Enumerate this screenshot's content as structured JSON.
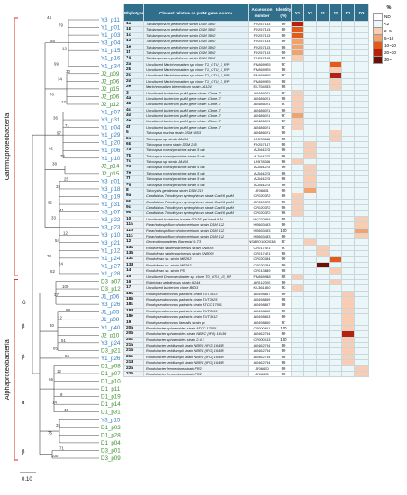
{
  "headers": {
    "phylotype": "Phylotype",
    "relative": "Closest relative as pufM gene source",
    "accession": "Accession number",
    "identity": "Identity (%)",
    "samples": [
      "Y1",
      "Y3",
      "J1",
      "J2",
      "D1",
      "D3"
    ]
  },
  "legend": {
    "title": "%",
    "items": [
      "ND",
      "<2",
      "2~5",
      "5~10",
      "10~20",
      "20~30",
      "30~"
    ]
  },
  "colors": {
    "header_bg": "#2f6f8c",
    "label_blue": "#2c7fc0",
    "label_green": "#3a8f2e",
    "clade_red": "#d9302a"
  },
  "classes": {
    "gamma": "Gammaproteobacteria",
    "alpha": "Alphaproteobacteria",
    "sub_g": "G",
    "sub_b1": "β",
    "sub_b2": "β",
    "sub_a": "α",
    "sub_b3": "β"
  },
  "scale": "0.10",
  "leaves": [
    {
      "t": "Y3_p11",
      "c": "b"
    },
    {
      "t": "Y1_p01",
      "c": "b"
    },
    {
      "t": "Y1_p03",
      "c": "b"
    },
    {
      "t": "Y3_p04",
      "c": "b"
    },
    {
      "t": "Y1_p15",
      "c": "b"
    },
    {
      "t": "Y1_p16",
      "c": "b"
    },
    {
      "t": "Y1_p34",
      "c": "b"
    },
    {
      "t": "J2_p09",
      "c": "g"
    },
    {
      "t": "J2_p06",
      "c": "g"
    },
    {
      "t": "J2_p15",
      "c": "g"
    },
    {
      "t": "J2_p06",
      "c": "g"
    },
    {
      "t": "J2_p12",
      "c": "g"
    },
    {
      "t": "Y1_p07",
      "c": "b"
    },
    {
      "t": "Y3_p31",
      "c": "b"
    },
    {
      "t": "Y1_p04",
      "c": "b"
    },
    {
      "t": "Y1_p29",
      "c": "b"
    },
    {
      "t": "Y1_p20",
      "c": "b"
    },
    {
      "t": "Y1_p06",
      "c": "b"
    },
    {
      "t": "Y1_p10",
      "c": "b"
    },
    {
      "t": "J2_p14",
      "c": "g"
    },
    {
      "t": "J2_p15",
      "c": "g"
    },
    {
      "t": "Y3_p01",
      "c": "b"
    },
    {
      "t": "Y3_p18",
      "c": "b"
    },
    {
      "t": "Y3_p19",
      "c": "b"
    },
    {
      "t": "Y1_p31",
      "c": "b"
    },
    {
      "t": "Y3_p07",
      "c": "b"
    },
    {
      "t": "Y3_p22",
      "c": "b"
    },
    {
      "t": "Y3_p23",
      "c": "b"
    },
    {
      "t": "Y3_p10",
      "c": "b"
    },
    {
      "t": "Y3_p21",
      "c": "b"
    },
    {
      "t": "Y1_p12",
      "c": "b"
    },
    {
      "t": "Y1_p24",
      "c": "b"
    },
    {
      "t": "Y1_p27",
      "c": "b"
    },
    {
      "t": "Y1_p28",
      "c": "b"
    },
    {
      "t": "D3_p07",
      "c": "g"
    },
    {
      "t": "D3_p12",
      "c": "g"
    },
    {
      "t": "J1_p06",
      "c": "b"
    },
    {
      "t": "Y3_p26",
      "c": "b"
    },
    {
      "t": "J1_p05",
      "c": "b"
    },
    {
      "t": "J1_p09",
      "c": "b"
    },
    {
      "t": "Y1_p40",
      "c": "b"
    },
    {
      "t": "J2_p10",
      "c": "g"
    },
    {
      "t": "Y3_p24",
      "c": "b"
    },
    {
      "t": "D3_p21",
      "c": "g"
    },
    {
      "t": "Y1_p26",
      "c": "b"
    },
    {
      "t": "D1_p08",
      "c": "g"
    },
    {
      "t": "D1_p07",
      "c": "g"
    },
    {
      "t": "D1_p10",
      "c": "g"
    },
    {
      "t": "D1_p11",
      "c": "g"
    },
    {
      "t": "D1_p19",
      "c": "g"
    },
    {
      "t": "D1_p14",
      "c": "g"
    },
    {
      "t": "D1_p31",
      "c": "g"
    },
    {
      "t": "Y3_p15",
      "c": "b"
    },
    {
      "t": "D1_p02",
      "c": "g"
    },
    {
      "t": "D1_p28",
      "c": "g"
    },
    {
      "t": "D1_p04",
      "c": "g"
    },
    {
      "t": "D3_p01",
      "c": "g"
    },
    {
      "t": "D3_p09",
      "c": "g"
    }
  ],
  "bootstrap": [
    "44",
    "79",
    "55",
    "12",
    "99",
    "30",
    "34",
    "70",
    "17",
    "36",
    "71",
    "97",
    "62",
    "75",
    "38",
    "25",
    "33",
    "62",
    "41",
    "33",
    "12",
    "54",
    "70",
    "24",
    "62",
    "100",
    "37",
    "99",
    "12",
    "30",
    "51",
    "85",
    "55",
    "12",
    "66",
    "8",
    "14",
    "40",
    "33",
    "75",
    "71",
    "100"
  ],
  "rows": [
    {
      "p": "1a",
      "n": "Thiolamprovum pedioforme strain DSM 3802",
      "a": "FN257153",
      "i": "99",
      "h": [
        4,
        0,
        0,
        0,
        0,
        0
      ]
    },
    {
      "p": "1b",
      "n": "Thiolamprovum pedioforme strain DSM 3802",
      "a": "FN257153",
      "i": "99",
      "h": [
        3,
        0,
        0,
        0,
        0,
        0
      ]
    },
    {
      "p": "1c",
      "n": "Thiolamprovum pedioforme strain DSM 3802",
      "a": "FN257153",
      "i": "99",
      "h": [
        3,
        0,
        0,
        0,
        0,
        0
      ]
    },
    {
      "p": "1d",
      "n": "Thiolamprovum pedioforme strain DSM 3802",
      "a": "FN257153",
      "i": "99",
      "h": [
        2,
        0,
        0,
        0,
        0,
        0
      ]
    },
    {
      "p": "1e",
      "n": "Thiolamprovum pedioforme strain DSM 3802",
      "a": "FN257153",
      "i": "98",
      "h": [
        2,
        0,
        0,
        0,
        0,
        0
      ]
    },
    {
      "p": "1f",
      "n": "Thiolamprovum pedioforme strain DSM 3802",
      "a": "FN257153",
      "i": "99",
      "h": [
        2,
        0,
        0,
        0,
        0,
        0
      ]
    },
    {
      "p": "1g",
      "n": "Thiolamprovum pedioforme strain DSM 3802",
      "a": "FN257153",
      "i": "99",
      "h": [
        1,
        0,
        0,
        0,
        0,
        0
      ]
    },
    {
      "p": "2a",
      "n": "Uncultured Marichromatium sp. clone T1_OTU_3_RP",
      "a": "FM869925",
      "i": "97",
      "h": [
        0,
        0,
        0,
        3,
        0,
        0
      ]
    },
    {
      "p": "2b",
      "n": "Uncultured Marichromatium sp. clone T1_OTU_3_RP",
      "a": "FM869925",
      "i": "98",
      "h": [
        0,
        0,
        0,
        1,
        0,
        0
      ]
    },
    {
      "p": "2c",
      "n": "Uncultured Marichromatium sp. clone T1_OTU_3_RP",
      "a": "FM869925",
      "i": "97",
      "h": [
        0,
        0,
        0,
        4,
        0,
        0
      ]
    },
    {
      "p": "2d",
      "n": "Uncultured Marichromatium sp. clone T1_OTU_3_RP",
      "a": "FM869925",
      "i": "98",
      "h": [
        0,
        0,
        0,
        1,
        0,
        0
      ]
    },
    {
      "p": "2e",
      "n": "Marichromatium bheemlicum strain JA124",
      "a": "EU754083",
      "i": "95",
      "h": [
        0,
        0,
        0,
        1,
        0,
        0
      ]
    },
    {
      "p": "3",
      "n": "Uncultured bacterium pufM gene clone: Clone-7",
      "a": "AB486021",
      "i": "97",
      "h": [
        1,
        0,
        0,
        0,
        0,
        0
      ]
    },
    {
      "p": "4a",
      "n": "Uncultured bacterium pufM gene clone: Clone-7",
      "a": "AB486021",
      "i": "98",
      "h": [
        1,
        0,
        0,
        0,
        0,
        0
      ]
    },
    {
      "p": "4b",
      "n": "Uncultured bacterium pufM gene clone: Clone-7",
      "a": "AB486021",
      "i": "97",
      "h": [
        1,
        0,
        0,
        0,
        0,
        0
      ]
    },
    {
      "p": "4c",
      "n": "Uncultured bacterium pufM gene clone: Clone-7",
      "a": "AB486021",
      "i": "96",
      "h": [
        1,
        0,
        0,
        0,
        0,
        0
      ]
    },
    {
      "p": "4d",
      "n": "Uncultured bacterium pufM gene clone: Clone-7",
      "a": "AB486021",
      "i": "97",
      "h": [
        2,
        0,
        0,
        0,
        0,
        0
      ]
    },
    {
      "p": "4e",
      "n": "Uncultured bacterium pufM gene clone: Clone-7",
      "a": "AB486021",
      "i": "97",
      "h": [
        1,
        0,
        0,
        0,
        0,
        0
      ]
    },
    {
      "p": "4f",
      "n": "Uncultured bacterium pufM gene clone: Clone-7",
      "a": "AB486021",
      "i": "97",
      "h": [
        1,
        0,
        0,
        0,
        0,
        0
      ]
    },
    {
      "p": "5",
      "n": "Thiocapsa marina strain DSM 5653",
      "a": "AB486021",
      "i": "99",
      "h": [
        0,
        0,
        0,
        1,
        0,
        0
      ]
    },
    {
      "p": "6a",
      "n": "Thiocapsa sp. strain JA464",
      "a": "LN578346",
      "i": "95",
      "h": [
        0,
        0,
        0,
        1,
        0,
        0
      ]
    },
    {
      "p": "6b",
      "n": "Thiocapsa rosea strain DSM 235",
      "a": "FN257147",
      "i": "95",
      "h": [
        0,
        1,
        0,
        0,
        0,
        0
      ]
    },
    {
      "p": "7a",
      "n": "Thiocapsa rosea/persicina strain 5 ork",
      "a": "AJ544223",
      "i": "96",
      "h": [
        0,
        1,
        0,
        0,
        0,
        0
      ]
    },
    {
      "p": "7b",
      "n": "Thiocapsa rosea/persicina strain 5 ork",
      "a": "AJ544223",
      "i": "96",
      "h": [
        0,
        1,
        0,
        0,
        0,
        0
      ]
    },
    {
      "p": "7c",
      "n": "Thiocapsa sp. strain JA464",
      "a": "LN578346",
      "i": "96",
      "h": [
        1,
        0,
        0,
        0,
        0,
        0
      ]
    },
    {
      "p": "7d",
      "n": "Thiocapsa rosea/persicina strain 5 ork",
      "a": "AJ544223",
      "i": "96",
      "h": [
        0,
        1,
        0,
        0,
        0,
        0
      ]
    },
    {
      "p": "7e",
      "n": "Thiocapsa rosea/persicina strain 5 ork",
      "a": "AJ544223",
      "i": "96",
      "h": [
        0,
        1,
        0,
        0,
        0,
        0
      ]
    },
    {
      "p": "7f",
      "n": "Thiocapsa rosea/persicina strain 5 ork",
      "a": "AJ544223",
      "i": "96",
      "h": [
        0,
        1,
        0,
        0,
        0,
        0
      ]
    },
    {
      "p": "7g",
      "n": "Thiocapsa rosea/persicina strain 5 ork",
      "a": "AJ544223",
      "i": "96",
      "h": [
        0,
        1,
        0,
        0,
        0,
        0
      ]
    },
    {
      "p": "8",
      "n": "Thiocystis gelatinosa strain DSM 215",
      "a": "JF06651",
      "i": "99",
      "h": [
        0,
        2,
        0,
        0,
        0,
        0
      ]
    },
    {
      "p": "9a",
      "n": "Candidatus Thiodictyon syntrophicum strain Cad16 pufM",
      "a": "CP020372",
      "i": "96",
      "h": [
        1,
        0,
        0,
        0,
        0,
        0
      ]
    },
    {
      "p": "9b",
      "n": "Candidatus Thiodictyon syntrophicum strain Cad16 pufM",
      "a": "CP020372",
      "i": "96",
      "h": [
        1,
        0,
        0,
        0,
        0,
        0
      ]
    },
    {
      "p": "9c",
      "n": "Candidatus Thiodictyon syntrophicum strain Cad16 pufM",
      "a": "CP020372",
      "i": "96",
      "h": [
        1,
        0,
        0,
        0,
        0,
        0
      ]
    },
    {
      "p": "9d",
      "n": "Candidatus Thiodictyon syntrophicum strain Cad16 pufM",
      "a": "CP020372",
      "i": "96",
      "h": [
        1,
        0,
        0,
        0,
        0,
        0
      ]
    },
    {
      "p": "10",
      "n": "Uncultured bacterium isolate DGGE gel band A10",
      "a": "HQ222684",
      "i": "85",
      "h": [
        0,
        0,
        0,
        0,
        0,
        1
      ]
    },
    {
      "p": "11a",
      "n": "Pararhodospirillum photometricum strain DSM 122",
      "a": "HE663493",
      "i": "99",
      "h": [
        0,
        0,
        0,
        0,
        0,
        1
      ]
    },
    {
      "p": "11b",
      "n": "Pararhodospirillum photometricum strain DSM 122",
      "a": "HE663493",
      "i": "100",
      "h": [
        0,
        0,
        0,
        0,
        0,
        2
      ]
    },
    {
      "p": "11c",
      "n": "Pararhodospirillum photometricum strain DSM 122",
      "a": "HE663493",
      "i": "99",
      "h": [
        0,
        0,
        0,
        0,
        0,
        1
      ]
    },
    {
      "p": "12",
      "n": "Gemmatimonadetes Bacterial G-T3",
      "a": "NS8BO1000038",
      "i": "87",
      "h": [
        0,
        1,
        0,
        0,
        0,
        0
      ]
    },
    {
      "p": "13a",
      "n": "Rhodoferax saidenbachensis strain SN8001",
      "a": "CP017421",
      "i": "97",
      "h": [
        0,
        0,
        1,
        0,
        0,
        0
      ]
    },
    {
      "p": "13b",
      "n": "Rhodoferax saidenbachensis strain SN8001",
      "a": "CP017421",
      "i": "96",
      "h": [
        0,
        0,
        1,
        0,
        0,
        0
      ]
    },
    {
      "p": "13c",
      "n": "Rhodoferax sp. strain MB263",
      "a": "CP020384",
      "i": "99",
      "h": [
        0,
        0,
        0,
        3,
        0,
        0
      ]
    },
    {
      "p": "13d",
      "n": "Rhodoferax sp. strain MB263",
      "a": "CP020384",
      "i": "99",
      "h": [
        0,
        0,
        5,
        0,
        0,
        0
      ]
    },
    {
      "p": "14",
      "n": "Rhodoferax sp. strain P5",
      "a": "CP013839",
      "i": "98",
      "h": [
        0,
        0,
        0,
        1,
        0,
        0
      ]
    },
    {
      "p": "15",
      "n": "Uncultured Dinoroseobacter sp. clone T0_OTU_23_RP",
      "a": "FM869948",
      "i": "85",
      "h": [
        1,
        0,
        0,
        0,
        0,
        0
      ]
    },
    {
      "p": "16",
      "n": "Rubrivivax gelatinosus strain IL144",
      "a": "AP012320",
      "i": "99",
      "h": [
        0,
        0,
        0,
        1,
        0,
        0
      ]
    },
    {
      "p": "17",
      "n": "Uncultured bacterium clone B6D3",
      "a": "KU361800",
      "i": "93",
      "h": [
        1,
        0,
        0,
        0,
        0,
        0
      ]
    },
    {
      "p": "18a",
      "n": "Rhodopseudomonas palustris strain TUT3613",
      "a": "AB498857",
      "i": "99",
      "h": [
        0,
        0,
        0,
        0,
        1,
        0
      ]
    },
    {
      "p": "18b",
      "n": "Rhodopseudomonas palustris strain TUT3625",
      "a": "AB498859",
      "i": "98",
      "h": [
        0,
        0,
        0,
        0,
        1,
        0
      ]
    },
    {
      "p": "18c",
      "n": "Rhodopseudomonas palustris strain ATCC 17001",
      "a": "AB498857",
      "i": "98",
      "h": [
        0,
        0,
        0,
        0,
        1,
        0
      ]
    },
    {
      "p": "18d",
      "n": "Rhodopseudomonas palustris strain TUT3615",
      "a": "AB498860",
      "i": "99",
      "h": [
        0,
        0,
        0,
        0,
        1,
        0
      ]
    },
    {
      "p": "18e",
      "n": "Rhodopseudomonas palustris strain TUT3612",
      "a": "AB498863",
      "i": "99",
      "h": [
        0,
        0,
        0,
        0,
        1,
        0
      ]
    },
    {
      "p": "19",
      "n": "Rhodopseudomonas faecalis strain gc",
      "a": "AB498860",
      "i": "97",
      "h": [
        0,
        0,
        0,
        0,
        1,
        0
      ]
    },
    {
      "p": "20a",
      "n": "Rhodobacter sphaeroides strain ATCC 17025",
      "a": "CP000661",
      "i": "100",
      "h": [
        0,
        0,
        0,
        0,
        1,
        0
      ]
    },
    {
      "p": "20b",
      "n": "Rhodobacter sphaeroides strain NBRC (IFO) 16436",
      "a": "AB462784",
      "i": "99",
      "h": [
        0,
        0,
        0,
        0,
        4,
        0
      ]
    },
    {
      "p": "20c",
      "n": "Rhodobacter sphaeroides strain 2.4.1",
      "a": "CP000143",
      "i": "100",
      "h": [
        0,
        0,
        0,
        0,
        1,
        0
      ]
    },
    {
      "p": "21a",
      "n": "Rhodobacter veldkampii strain NBRC (IFO) 16458",
      "a": "AB462784",
      "i": "99",
      "h": [
        0,
        0,
        0,
        0,
        1,
        0
      ]
    },
    {
      "p": "21b",
      "n": "Rhodobacter veldkampii strain NBRC (IFO) 16458",
      "a": "AB462784",
      "i": "99",
      "h": [
        0,
        0,
        0,
        0,
        1,
        0
      ]
    },
    {
      "p": "21c",
      "n": "Rhodobacter veldkampii strain NBRC (IFO) 16458",
      "a": "AB462784",
      "i": "98",
      "h": [
        0,
        0,
        0,
        0,
        1,
        0
      ]
    },
    {
      "p": "21d",
      "n": "Rhodobacter veldkampii strain NBRC (IFO) 16458",
      "a": "AB462784",
      "i": "98",
      "h": [
        0,
        0,
        0,
        0,
        1,
        0
      ]
    },
    {
      "p": "22a",
      "n": "Rhodobacter fermentans strain FR2",
      "a": "JF06650",
      "i": "99",
      "h": [
        0,
        0,
        0,
        0,
        0,
        1
      ]
    },
    {
      "p": "22b",
      "n": "Rhodobacter fermentans strain FR2",
      "a": "JF06650",
      "i": "98",
      "h": [
        0,
        0,
        0,
        0,
        0,
        1
      ]
    }
  ]
}
